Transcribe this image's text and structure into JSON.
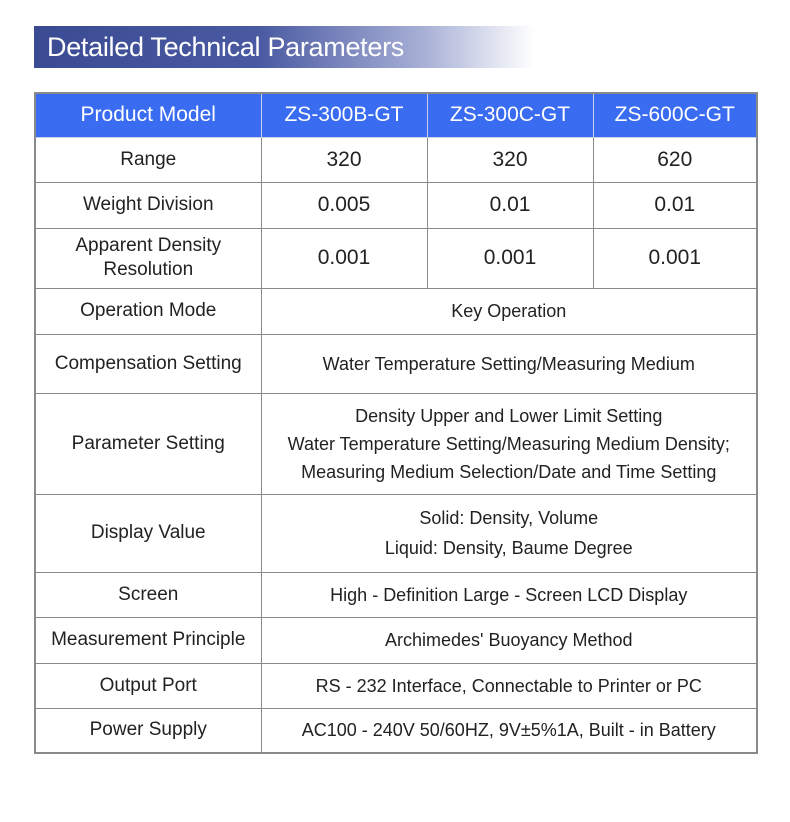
{
  "title": "Detailed Technical Parameters",
  "header": {
    "label": "Product Model",
    "models": [
      "ZS-300B-GT",
      "ZS-300C-GT",
      "ZS-600C-GT"
    ]
  },
  "rows": {
    "range": {
      "label": "Range",
      "values": [
        "320",
        "320",
        "620"
      ]
    },
    "weight_division": {
      "label": "Weight Division",
      "values": [
        "0.005",
        "0.01",
        "0.01"
      ]
    },
    "density_resolution": {
      "label_lines": [
        "Apparent Density",
        "Resolution"
      ],
      "values": [
        "0.001",
        "0.001",
        "0.001"
      ]
    },
    "operation_mode": {
      "label": "Operation Mode",
      "value": "Key Operation"
    },
    "compensation": {
      "label": "Compensation Setting",
      "value": "Water Temperature Setting/Measuring Medium"
    },
    "parameter_setting": {
      "label": "Parameter Setting",
      "lines": [
        "Density Upper and Lower Limit Setting",
        "Water Temperature Setting/Measuring Medium Density;",
        "Measuring Medium Selection/Date and Time Setting"
      ]
    },
    "display_value": {
      "label": "Display Value",
      "lines": [
        "Solid: Density, Volume",
        "Liquid: Density, Baume Degree"
      ]
    },
    "screen": {
      "label": "Screen",
      "value": "High - Definition Large - Screen LCD Display"
    },
    "principle": {
      "label": "Measurement Principle",
      "value": "Archimedes' Buoyancy Method"
    },
    "output_port": {
      "label": "Output Port",
      "value": "RS - 232 Interface, Connectable to Printer or PC"
    },
    "power_supply": {
      "label": "Power Supply",
      "value": "AC100 - 240V 50/60HZ, 9V±5%1A, Built - in Battery"
    }
  }
}
